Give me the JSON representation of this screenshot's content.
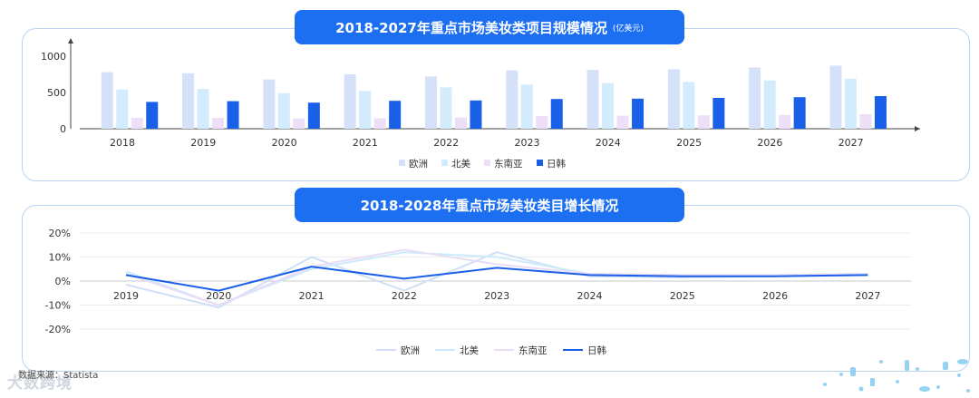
{
  "chart_data": [
    {
      "type": "bar",
      "title": "2018-2027年重点市场美妆类项目规模情况",
      "unit": "(亿美元)",
      "categories": [
        "2018",
        "2019",
        "2020",
        "2021",
        "2022",
        "2023",
        "2024",
        "2025",
        "2026",
        "2027"
      ],
      "y_ticks": [
        "0",
        "500",
        "1000"
      ],
      "ylim": [
        0,
        1000
      ],
      "legend_position": "bottom",
      "series": [
        {
          "name": "欧洲",
          "color": "#d4e1f9",
          "values": [
            780,
            765,
            680,
            750,
            720,
            805,
            810,
            820,
            845,
            870
          ]
        },
        {
          "name": "北美",
          "color": "#d3ecfd",
          "values": [
            540,
            550,
            490,
            520,
            570,
            610,
            630,
            645,
            665,
            690
          ]
        },
        {
          "name": "东南亚",
          "color": "#ecdff7",
          "values": [
            150,
            150,
            140,
            145,
            155,
            175,
            180,
            185,
            190,
            200
          ]
        },
        {
          "name": "日韩",
          "color": "#1a5fe8",
          "values": [
            370,
            380,
            360,
            385,
            390,
            410,
            415,
            425,
            435,
            450
          ]
        }
      ]
    },
    {
      "type": "line",
      "title": "2018-2028年重点市场美妆类目增长情况",
      "categories": [
        "2019",
        "2020",
        "2021",
        "2022",
        "2023",
        "2024",
        "2025",
        "2026",
        "2027"
      ],
      "y_ticks": [
        "20%",
        "10%",
        "0%",
        "-10%",
        "-20%"
      ],
      "ylim": [
        -20,
        20
      ],
      "legend_position": "bottom",
      "series": [
        {
          "name": "欧洲",
          "color": "#cfe0f6",
          "values": [
            -1.5,
            -11,
            10,
            -4,
            12,
            2,
            1.5,
            2,
            2.5
          ]
        },
        {
          "name": "北美",
          "color": "#cdeafb",
          "values": [
            4,
            -10,
            5,
            12,
            10,
            3,
            2.5,
            2.5,
            3
          ]
        },
        {
          "name": "东南亚",
          "color": "#e9dcf6",
          "values": [
            3,
            -10,
            6,
            13,
            7,
            3,
            2.5,
            2.5,
            3
          ]
        },
        {
          "name": "日韩",
          "color": "#1a5fe8",
          "values": [
            2.5,
            -4,
            6,
            1,
            5.5,
            2.5,
            2,
            2,
            2.5
          ]
        }
      ]
    }
  ],
  "footer": {
    "source": "数据来源：Statista",
    "brand": "大数跨境"
  }
}
